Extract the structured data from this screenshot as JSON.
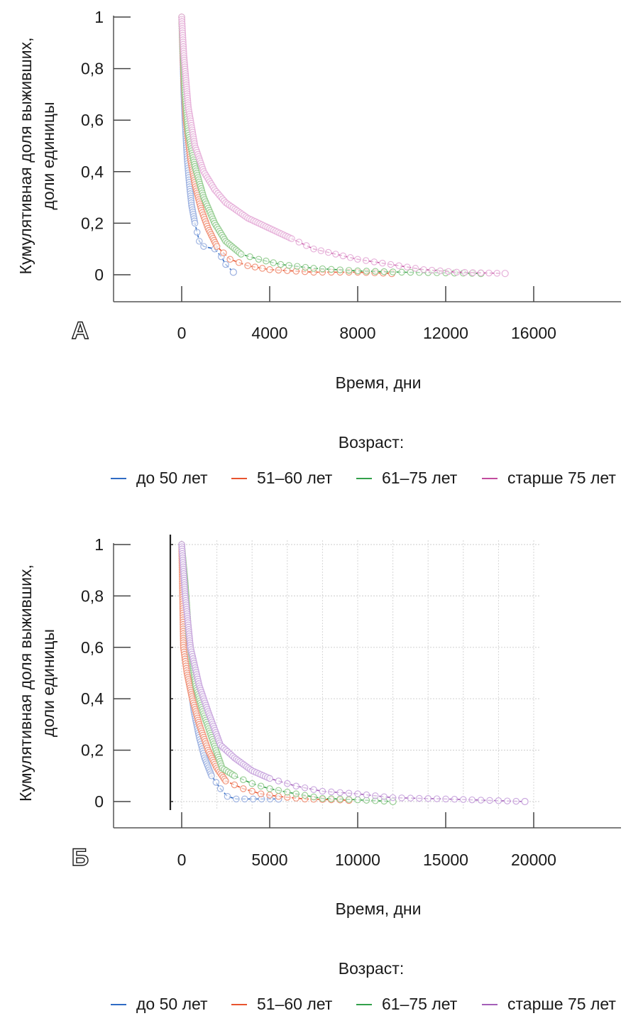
{
  "chart_data": [
    {
      "type": "line",
      "panel_label": "А",
      "title": "",
      "xlabel": "Время, дни",
      "ylabel": [
        "Кумулятивная доля выживших,",
        "доли единицы"
      ],
      "xlim": [
        -4000,
        19000
      ],
      "ylim": [
        -0.1,
        1.0
      ],
      "xticks": [
        0,
        4000,
        8000,
        12000,
        16000
      ],
      "xtick_labels": [
        "0",
        "4000",
        "8000",
        "12000",
        "16000"
      ],
      "yticks": [
        0,
        0.2,
        0.4,
        0.6,
        0.8,
        1
      ],
      "ytick_labels": [
        "0",
        "0,2",
        "0,4",
        "0,6",
        "0,8",
        "1"
      ],
      "grid": false,
      "legend_title": "Возраст:",
      "legend_placement": "bottom",
      "series": [
        {
          "name": "до 50 лет",
          "color": "#2f6bc4",
          "marker_color": "#9bb0e0",
          "x": [
            0,
            50,
            100,
            150,
            250,
            350,
            450,
            600,
            800,
            1000,
            1500,
            1800,
            2000,
            2350
          ],
          "y": [
            1,
            0.85,
            0.7,
            0.6,
            0.45,
            0.35,
            0.27,
            0.2,
            0.13,
            0.11,
            0.1,
            0.07,
            0.04,
            0.01
          ]
        },
        {
          "name": "51–60 лет",
          "color": "#e8542f",
          "marker_color": "#f19278",
          "x": [
            0,
            100,
            200,
            400,
            600,
            900,
            1200,
            1600,
            2200,
            3000,
            4000,
            6000,
            8000,
            9550
          ],
          "y": [
            1,
            0.75,
            0.6,
            0.45,
            0.35,
            0.25,
            0.18,
            0.11,
            0.06,
            0.035,
            0.02,
            0.01,
            0.01,
            0.005
          ]
        },
        {
          "name": "61–75 лет",
          "color": "#33a04a",
          "marker_color": "#93cc8f",
          "x": [
            0,
            150,
            300,
            600,
            1000,
            1500,
            2000,
            2700,
            3500,
            4500,
            6000,
            8000,
            10000,
            13600
          ],
          "y": [
            1,
            0.7,
            0.55,
            0.42,
            0.3,
            0.2,
            0.13,
            0.08,
            0.06,
            0.04,
            0.025,
            0.015,
            0.01,
            0.005
          ]
        },
        {
          "name": "старше 75 лет",
          "color": "#c24c9e",
          "marker_color": "#e6afd9",
          "x": [
            0,
            100,
            300,
            600,
            1000,
            1500,
            2000,
            3000,
            4000,
            5000,
            6000,
            7000,
            8000,
            9500,
            11000,
            12500,
            14700
          ],
          "y": [
            1,
            0.85,
            0.65,
            0.5,
            0.4,
            0.33,
            0.28,
            0.22,
            0.18,
            0.14,
            0.1,
            0.08,
            0.06,
            0.04,
            0.02,
            0.01,
            0.005
          ]
        }
      ]
    },
    {
      "type": "line",
      "panel_label": "Б",
      "title": "",
      "xlabel": "Время, дни",
      "ylabel": [
        "Кумулятивная доля выживших,",
        "доли единицы"
      ],
      "xlim": [
        -3870,
        24960
      ],
      "ylim": [
        -0.1,
        1.0
      ],
      "xticks": [
        0,
        5000,
        10000,
        15000,
        20000
      ],
      "xtick_labels": [
        "0",
        "5000",
        "10000",
        "15000",
        "20000"
      ],
      "yticks": [
        0,
        0.2,
        0.4,
        0.6,
        0.8,
        1
      ],
      "ytick_labels": [
        "0",
        "0,2",
        "0,4",
        "0,6",
        "0,8",
        "1"
      ],
      "grid": true,
      "legend_title": "Возраст:",
      "legend_placement": "bottom",
      "series": [
        {
          "name": "до 50 лет",
          "color": "#2f6bc4",
          "marker_color": "#9bb0e0",
          "x": [
            0,
            200,
            400,
            700,
            1000,
            1300,
            1700,
            2200,
            2600,
            3100,
            5500
          ],
          "y": [
            1,
            0.7,
            0.5,
            0.35,
            0.25,
            0.17,
            0.1,
            0.05,
            0.02,
            0.01,
            0.01
          ]
        },
        {
          "name": "51–60 лет",
          "color": "#e8542f",
          "marker_color": "#f19278",
          "x": [
            0,
            100,
            300,
            600,
            1000,
            1500,
            2000,
            2500,
            3500,
            4500,
            5500,
            7000,
            9500
          ],
          "y": [
            1,
            0.6,
            0.5,
            0.4,
            0.3,
            0.2,
            0.13,
            0.08,
            0.05,
            0.03,
            0.02,
            0.01,
            0.005
          ]
        },
        {
          "name": "61–75 лет",
          "color": "#33a04a",
          "marker_color": "#93cc8f",
          "x": [
            0,
            200,
            400,
            800,
            1200,
            1700,
            2300,
            3000,
            4000,
            5000,
            6500,
            8000,
            9000,
            12000
          ],
          "y": [
            1,
            0.85,
            0.65,
            0.45,
            0.35,
            0.25,
            0.13,
            0.1,
            0.07,
            0.05,
            0.03,
            0.012,
            0.01,
            0.0
          ]
        },
        {
          "name": "старше 75 лет",
          "color": "#a45fb8",
          "marker_color": "#c9a6de",
          "x": [
            0,
            200,
            500,
            1000,
            1500,
            2200,
            3000,
            4000,
            5000,
            6500,
            8000,
            10000,
            12000,
            15000,
            19500
          ],
          "y": [
            1,
            0.8,
            0.6,
            0.45,
            0.35,
            0.22,
            0.17,
            0.12,
            0.09,
            0.06,
            0.04,
            0.03,
            0.015,
            0.01,
            0.0
          ]
        }
      ]
    }
  ]
}
